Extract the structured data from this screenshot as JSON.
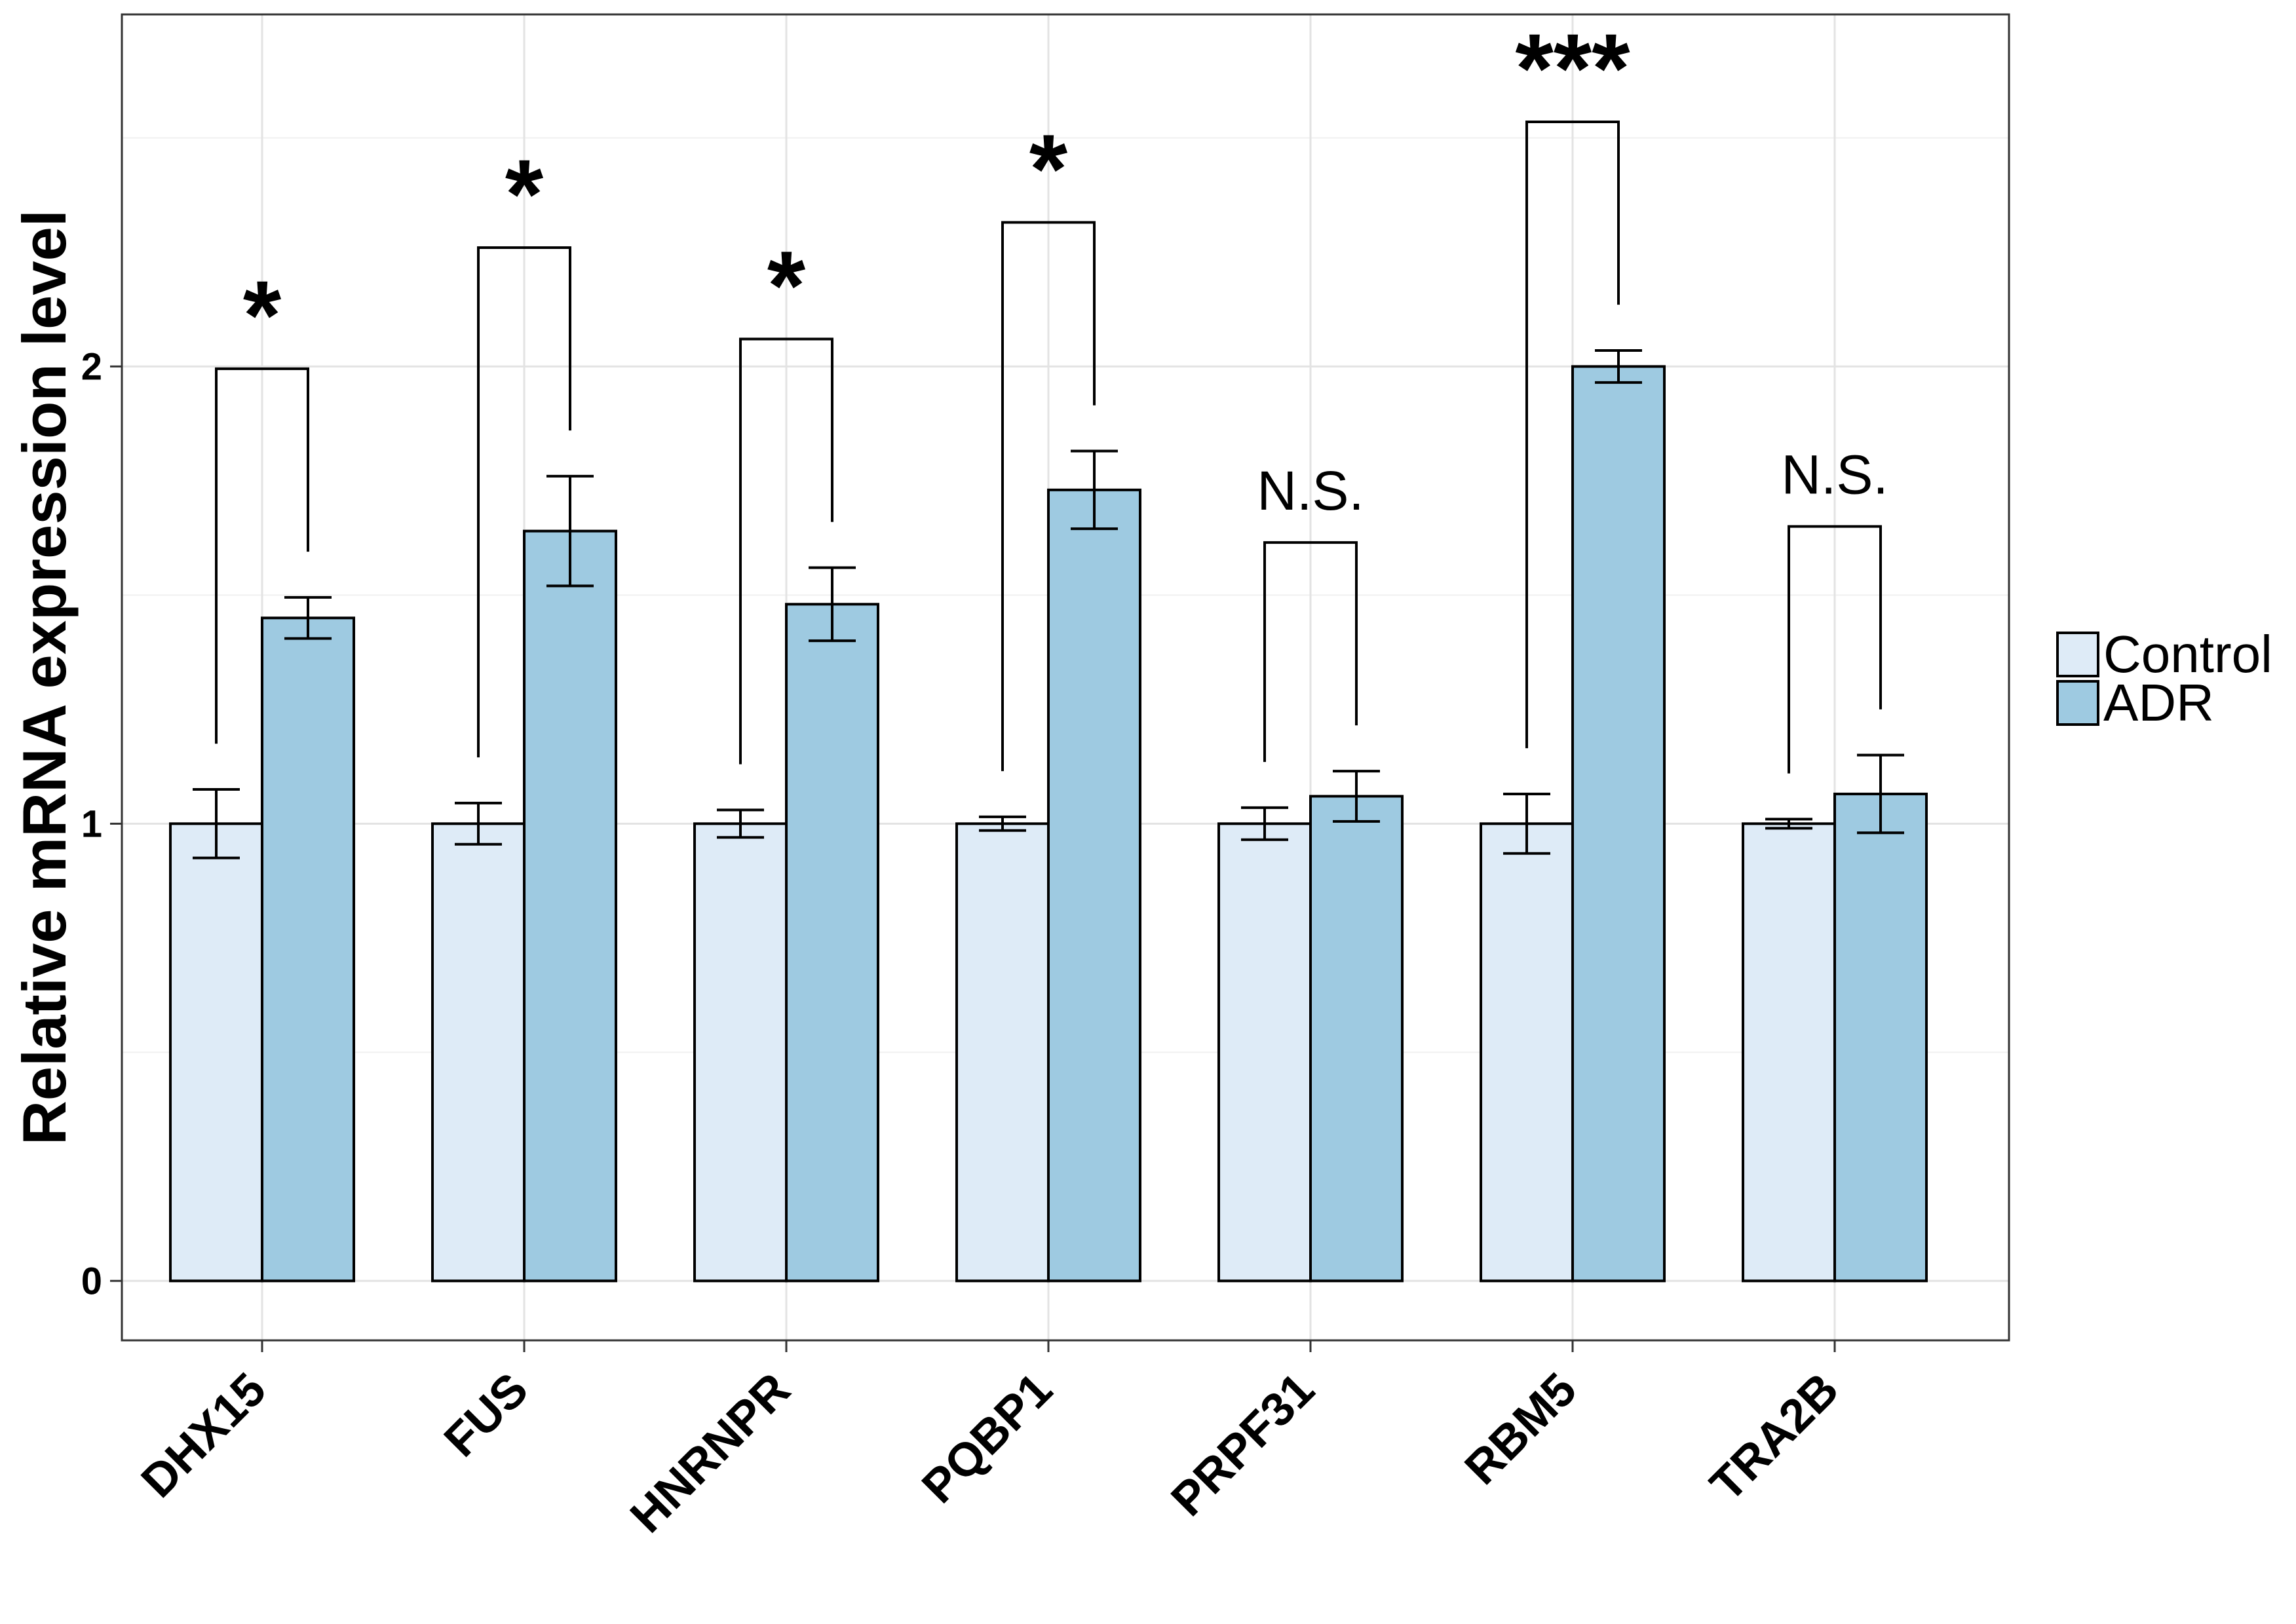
{
  "chart_data": {
    "type": "bar",
    "ylabel": "Relative mRNA expression level",
    "xlabel": "",
    "title": "",
    "categories": [
      "DHX15",
      "FUS",
      "HNRNPR",
      "PQBP1",
      "PRPF31",
      "RBM5",
      "TRA2B"
    ],
    "series": [
      {
        "name": "Control",
        "color": "#deebf7",
        "values": [
          1.0,
          1.0,
          1.0,
          1.0,
          1.0,
          1.0,
          1.0
        ],
        "errors": [
          0.075,
          0.045,
          0.03,
          0.015,
          0.035,
          0.065,
          0.01
        ]
      },
      {
        "name": "ADR",
        "color": "#9ecae1",
        "values": [
          1.45,
          1.64,
          1.48,
          1.73,
          1.06,
          2.0,
          1.065
        ],
        "errors": [
          0.045,
          0.12,
          0.08,
          0.085,
          0.055,
          0.035,
          0.085
        ]
      }
    ],
    "significance": [
      "*",
      "*",
      "*",
      "*",
      "N.S.",
      "***",
      "N.S."
    ],
    "ylim": [
      -0.13,
      2.77
    ],
    "yticks": [
      0,
      1,
      2
    ],
    "grid": true,
    "legend_position": "right"
  }
}
